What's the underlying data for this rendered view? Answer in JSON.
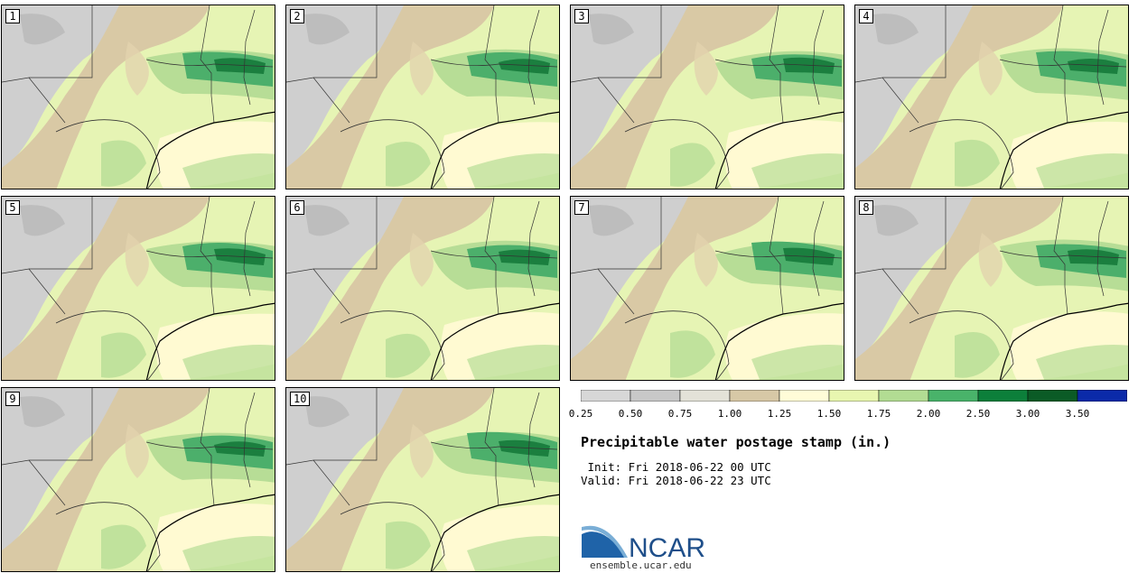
{
  "panels": [
    "1",
    "2",
    "3",
    "4",
    "5",
    "6",
    "7",
    "8",
    "9",
    "10"
  ],
  "colorbar": {
    "ticks": [
      "0.25",
      "0.50",
      "0.75",
      "1.00",
      "1.25",
      "1.50",
      "1.75",
      "2.00",
      "2.50",
      "3.00",
      "3.50"
    ],
    "colors": [
      "#d7d7d7",
      "#c8c8c8",
      "#e3e2d8",
      "#d7c8a6",
      "#fffcd8",
      "#e8f6b0",
      "#b2dc93",
      "#49b36a",
      "#0c7f3a",
      "#0b5b26",
      "#0b2aa9"
    ]
  },
  "title": "Precipitable water postage stamp (in.)",
  "init": " Init: Fri 2018-06-22 00 UTC",
  "valid": "Valid: Fri 2018-06-22 23 UTC",
  "logo": {
    "text": "NCAR",
    "url": "ensemble.ucar.edu"
  }
}
